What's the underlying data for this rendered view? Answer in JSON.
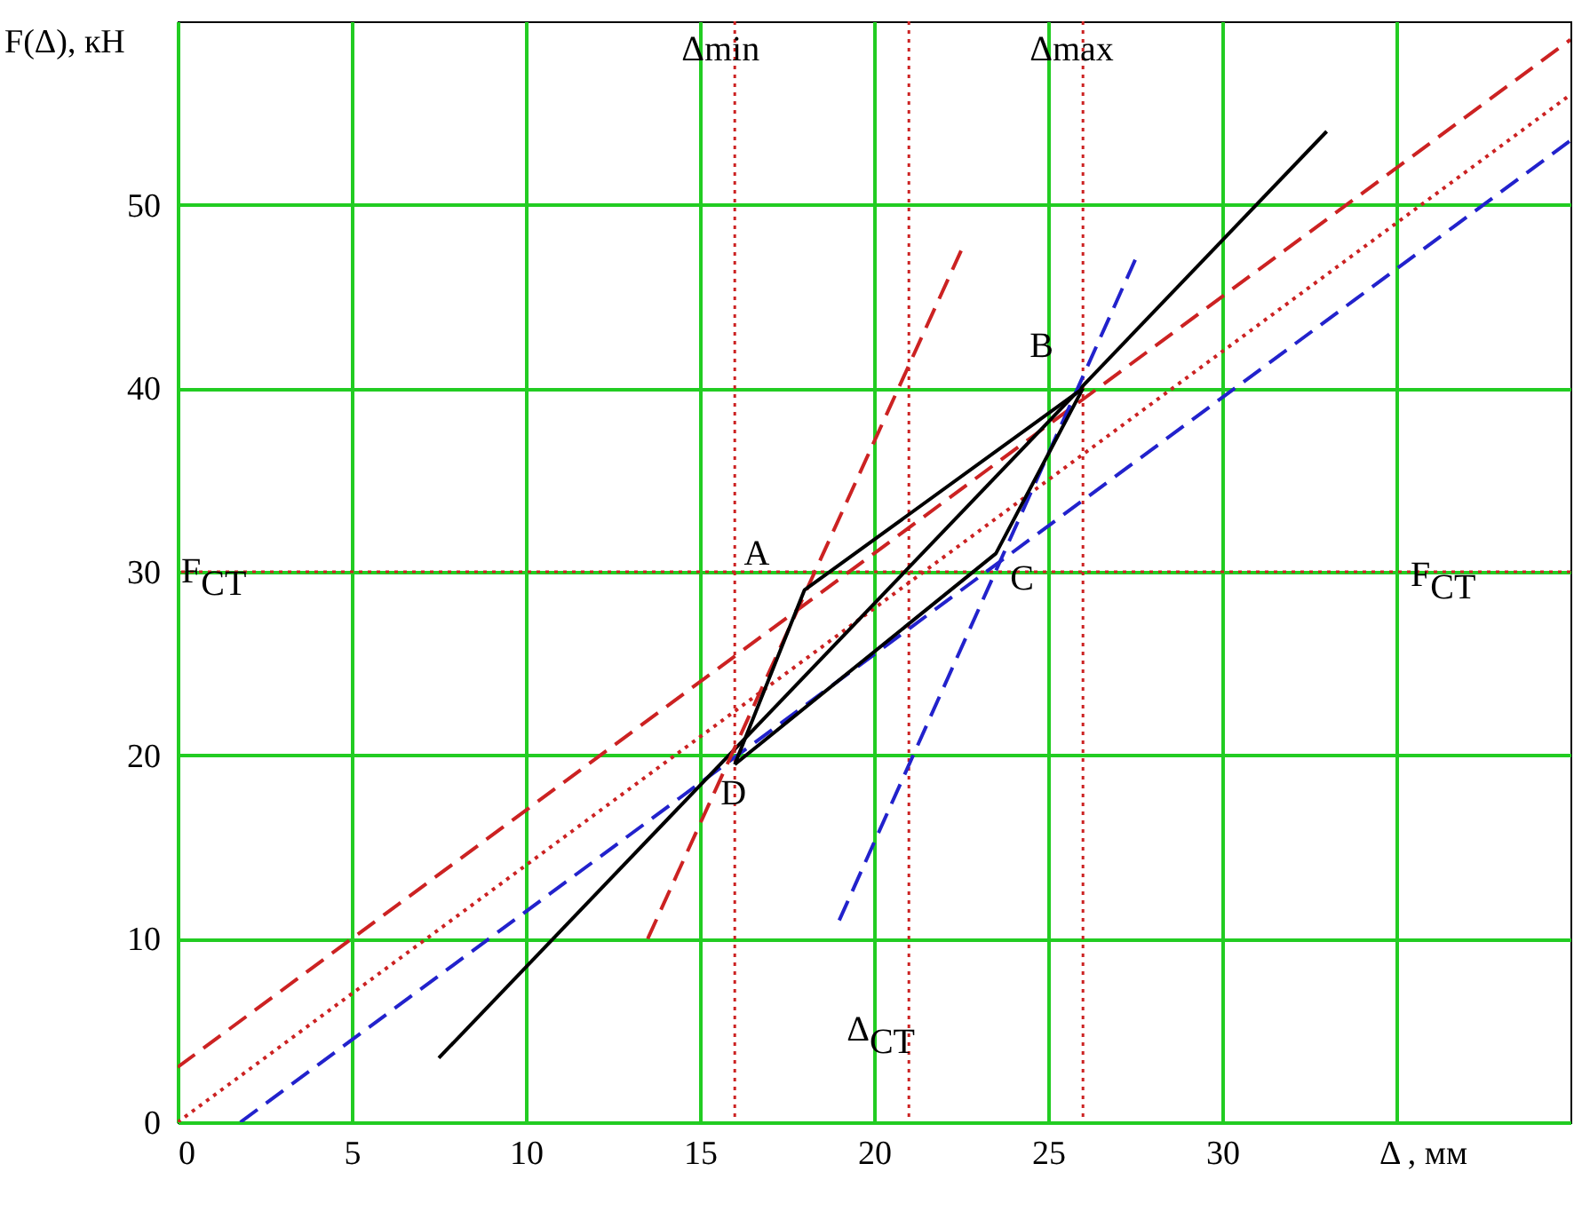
{
  "chart_data": {
    "type": "line",
    "xlabel": "Δ , мм",
    "ylabel": "F(Δ), кН",
    "xlim": [
      0,
      40
    ],
    "ylim": [
      0,
      60
    ],
    "xticks": [
      0,
      5,
      10,
      15,
      20,
      25,
      30,
      {
        "value": 35,
        "label": null
      }
    ],
    "yticks": [
      0,
      10,
      20,
      30,
      40,
      50
    ],
    "grid": true,
    "series": [
      {
        "color": "#cc2222",
        "line_style": "dashed",
        "x": [
          0,
          40
        ],
        "values": [
          3,
          59
        ]
      },
      {
        "color": "#2222cc",
        "line_style": "dashed",
        "x": [
          1.8,
          40
        ],
        "values": [
          0,
          53.5
        ]
      },
      {
        "color": "#cc2222",
        "line_style": "dotted",
        "x": [
          0,
          40
        ],
        "values": [
          0,
          56
        ]
      },
      {
        "color": "#000000",
        "line_style": "solid",
        "x": [
          7.5,
          33
        ],
        "values": [
          3.5,
          54
        ]
      },
      {
        "color": "#cc2222",
        "line_style": "dashed",
        "x": [
          13.5,
          22.5
        ],
        "values": [
          10,
          47.5
        ]
      },
      {
        "color": "#2222cc",
        "line_style": "dashed",
        "x": [
          19,
          27.5
        ],
        "values": [
          11,
          47
        ]
      },
      {
        "color": "#000000",
        "line_style": "solid",
        "x": [
          16,
          18,
          26
        ],
        "values": [
          19.5,
          29,
          40
        ]
      },
      {
        "color": "#000000",
        "line_style": "solid",
        "x": [
          16,
          23.5,
          26
        ],
        "values": [
          19.5,
          31,
          40
        ]
      }
    ],
    "ref_lines": [
      {
        "axis": "x",
        "value": 16,
        "color": "#cc2222",
        "line_style": "dotted",
        "label": "Δmin"
      },
      {
        "axis": "x",
        "value": 26,
        "color": "#cc2222",
        "line_style": "dotted",
        "label": "Δmax"
      },
      {
        "axis": "x",
        "value": 21,
        "color": "#cc2222",
        "line_style": "dotted",
        "label": "Δ$_{CT}$"
      },
      {
        "axis": "y",
        "value": 30,
        "color": "#cc2222",
        "line_style": "dotted",
        "label": "F$_{CT}$"
      }
    ],
    "annotations": [
      {
        "text": "A",
        "x": 18,
        "y": 29
      },
      {
        "text": "B",
        "x": 26,
        "y": 40
      },
      {
        "text": "C",
        "x": 23.5,
        "y": 31
      },
      {
        "text": "D",
        "x": 16,
        "y": 19.5
      }
    ]
  }
}
